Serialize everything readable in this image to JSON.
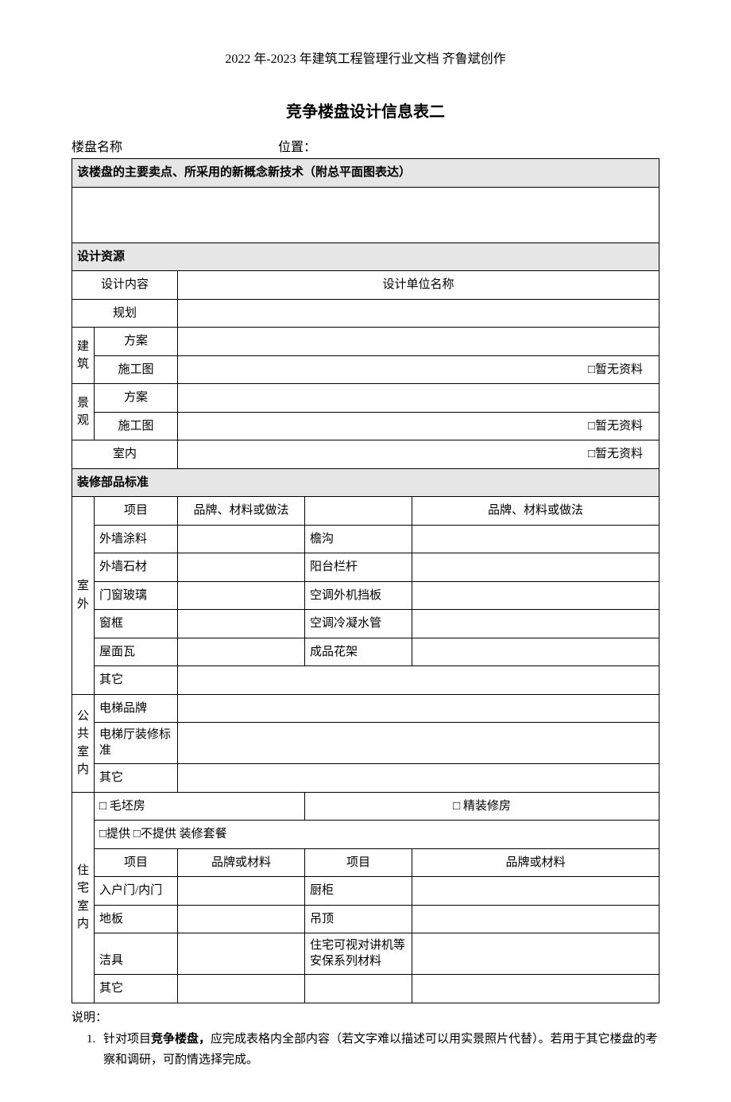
{
  "header": "2022 年-2023 年建筑工程管理行业文档  齐鲁斌创作",
  "title": "竞争楼盘设计信息表二",
  "meta": {
    "name_label": "楼盘名称",
    "loc_label": "位置："
  },
  "sec1": {
    "heading": "该楼盘的主要卖点、所采用的新概念新技术（附总平面图表达）"
  },
  "sec2": {
    "heading": "设计资源",
    "col_content": "设计内容",
    "col_unit": "设计单位名称",
    "rows": {
      "plan": "规划",
      "arch": "建筑",
      "arch_scheme": "方案",
      "arch_cd": "施工图",
      "land": "景观",
      "land_scheme": "方案",
      "land_cd": "施工图",
      "interior": "室内"
    },
    "no_data": "□暂无资料"
  },
  "sec3": {
    "heading": "装修部品标准",
    "col_item": "项目",
    "col_brand": "品牌、材料或做法",
    "outdoor_label": "室外",
    "outdoor": [
      [
        "外墙涂料",
        "檐沟"
      ],
      [
        "外墙石材",
        "阳台栏杆"
      ],
      [
        "门窗玻璃",
        "空调外机挡板"
      ],
      [
        "窗框",
        "空调冷凝水管"
      ],
      [
        "屋面瓦",
        "成品花架"
      ],
      [
        "其它",
        ""
      ]
    ],
    "public_label": "公共室内",
    "public": [
      "电梯品牌",
      "电梯厅装修标准",
      "其它"
    ],
    "res_label": "住宅室内",
    "res_row1_a": "□ 毛坯房",
    "res_row1_b": "□ 精装修房",
    "res_row2": "□提供 □不提供   装修套餐",
    "res_col_item": "项目",
    "res_col_brand": "品牌或材料",
    "res_rows": [
      [
        "入户门/内门",
        "厨柜"
      ],
      [
        "地板",
        "吊顶"
      ],
      [
        "洁具",
        "住宅可视对讲机等安保系列材料"
      ],
      [
        "其它",
        ""
      ]
    ]
  },
  "notes": {
    "label": "说明：",
    "item1_pre": "针对项目",
    "item1_bold": "竞争楼盘，",
    "item1_post": "应完成表格内全部内容（若文字难以描述可以用实景照片代替）。若用于其它楼盘的考察和调研，可酌情选择完成。"
  }
}
